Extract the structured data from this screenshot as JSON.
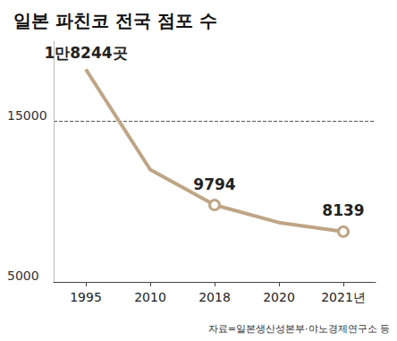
{
  "chart_data": {
    "type": "line",
    "title": "일본 파친코 전국 점포 수",
    "source": "자료=일본생산성본부·야노경제연구소 등",
    "categories": [
      "1995",
      "2010",
      "2018",
      "2020",
      "2021년"
    ],
    "values": [
      18244,
      12000,
      9794,
      8700,
      8139
    ],
    "value_labels": [
      "1만8244곳",
      null,
      "9794",
      null,
      "8139"
    ],
    "data_labels": true,
    "color": "#bfa586",
    "marker": "circle",
    "ylim": [
      5000,
      20000
    ],
    "yticks": [
      5000,
      15000
    ],
    "grid": true
  }
}
